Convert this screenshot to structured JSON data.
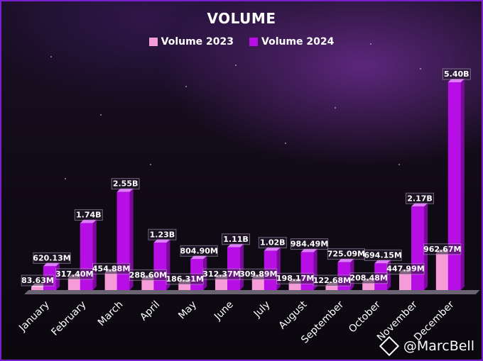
{
  "chart_data": {
    "type": "bar",
    "title": "VOLUME",
    "categories": [
      "January",
      "February",
      "March",
      "April",
      "May",
      "June",
      "July",
      "August",
      "September",
      "October",
      "November",
      "December"
    ],
    "series": [
      {
        "name": "Volume 2023",
        "color": "#f59bd8",
        "values": [
          83.63,
          317.4,
          454.88,
          288.6,
          186.31,
          312.37,
          309.89,
          198.17,
          122.68,
          208.48,
          447.99,
          962.67
        ],
        "labels": [
          "83.63M",
          "317.40M",
          "454.88M",
          "288.60M",
          "186.31M",
          "312.37M",
          "309.89M",
          "198.17M",
          "122.68M",
          "208.48M",
          "447.99M",
          "962.67M"
        ]
      },
      {
        "name": "Volume 2024",
        "color": "#b80ee6",
        "values": [
          620.13,
          1740,
          2550,
          1230,
          804.9,
          1110,
          1020,
          984.49,
          725.09,
          694.15,
          2170,
          5400
        ],
        "labels": [
          "620.13M",
          "1.74B",
          "2.55B",
          "1.23B",
          "804.90M",
          "1.11B",
          "1.02B",
          "984.49M",
          "725.09M",
          "694.15M",
          "2.17B",
          "5.40B"
        ]
      }
    ],
    "ylabel": "",
    "xlabel": "",
    "ylim": [
      0,
      5400
    ],
    "unit": "M",
    "legend_position": "top",
    "grid": false
  },
  "watermark": "@MarcBell"
}
